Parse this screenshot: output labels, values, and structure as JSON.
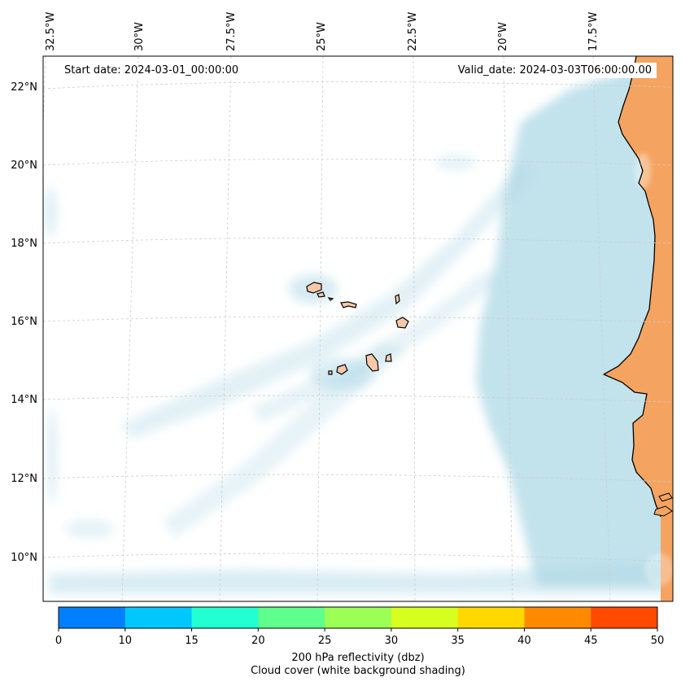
{
  "header": {
    "start_date": "Start date: 2024-03-01_00:00:00",
    "valid_date": "Valid_date: 2024-03-03T06:00:00.00"
  },
  "map": {
    "projection": "lambert-conformal",
    "lon_ticks": [
      "32.5°W",
      "30°W",
      "27.5°W",
      "25°W",
      "22.5°W",
      "20°W",
      "17.5°W"
    ],
    "lat_ticks": [
      "22°N",
      "20°N",
      "18°N",
      "16°N",
      "14°N",
      "12°N",
      "10°N"
    ],
    "land_color": "#f4a460",
    "cloud_color": "#add8e6",
    "gridlines": true,
    "features": [
      "cape-verde-islands",
      "west-african-coastline",
      "cloud-cover-bands"
    ]
  },
  "colorbar": {
    "colors": [
      "#0080ff",
      "#00c8ff",
      "#22ffd2",
      "#5eff8c",
      "#9cff55",
      "#d6ff1f",
      "#ffd800",
      "#ff8a00",
      "#ff4a00"
    ],
    "ticks": [
      "0",
      "10",
      "15",
      "20",
      "25",
      "30",
      "35",
      "40",
      "45",
      "50"
    ],
    "title_line1": "200 hPa reflectivity (dbz)",
    "title_line2": "Cloud cover (white background shading)"
  }
}
